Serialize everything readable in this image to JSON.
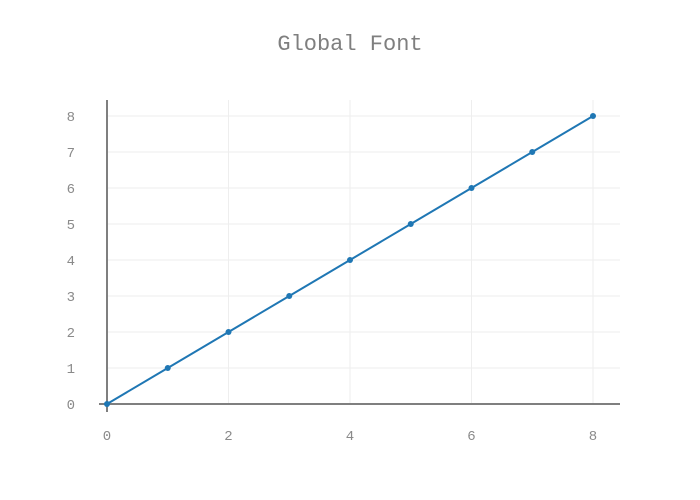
{
  "chart_data": {
    "type": "line",
    "title": "Global Font",
    "xlabel": "",
    "ylabel": "",
    "x": [
      0,
      1,
      2,
      3,
      4,
      5,
      6,
      7,
      8
    ],
    "series": [
      {
        "values": [
          0,
          1,
          2,
          3,
          4,
          5,
          6,
          7,
          8
        ],
        "color": "#1f77b4",
        "mode": "lines+markers"
      }
    ],
    "xticks": [
      0,
      2,
      4,
      6,
      8
    ],
    "yticks": [
      0,
      1,
      2,
      3,
      4,
      5,
      6,
      7,
      8
    ],
    "xlim": [
      0,
      8.45
    ],
    "ylim": [
      0,
      8.45
    ],
    "grid": true,
    "legend": "none"
  },
  "colors": {
    "title": "#7f7f7f",
    "ticks": "#8a8a8a",
    "grid": "#eeeeee",
    "axis": "#7f7f7f"
  }
}
